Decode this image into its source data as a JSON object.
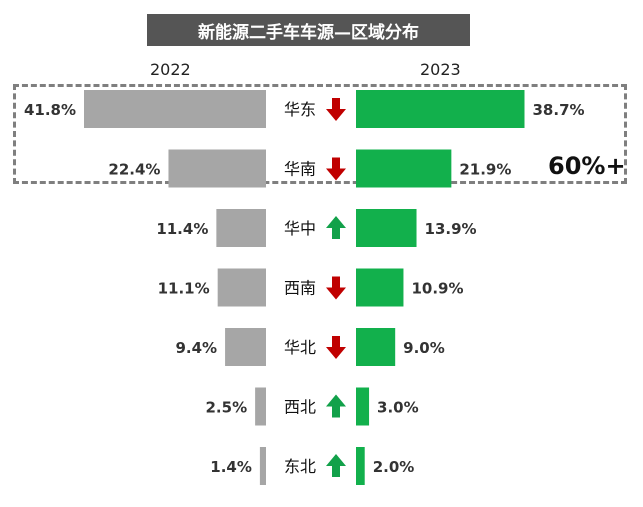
{
  "header": {
    "title": "新能源二手车车源—区域分布"
  },
  "years": {
    "left": "2022",
    "right": "2023"
  },
  "callout": "60%+",
  "colors": {
    "bar2022": "#a6a6a6",
    "bar2023": "#12b04c",
    "arrowDown": "#c00000",
    "arrowUp": "#12a14a"
  },
  "chart_data": {
    "type": "bar",
    "orientation": "horizontal-butterfly",
    "categories": [
      "华东",
      "华南",
      "华中",
      "西南",
      "华北",
      "西北",
      "东北"
    ],
    "series": [
      {
        "name": "2022",
        "values": [
          41.8,
          22.4,
          11.4,
          11.1,
          9.4,
          2.5,
          1.4
        ],
        "labels": [
          "41.8%",
          "22.4%",
          "11.4%",
          "11.1%",
          "9.4%",
          "2.5%",
          "1.4%"
        ]
      },
      {
        "name": "2023",
        "values": [
          38.7,
          21.9,
          13.9,
          10.9,
          9.0,
          3.0,
          2.0
        ],
        "labels": [
          "38.7%",
          "21.9%",
          "13.9%",
          "10.9%",
          "9.0%",
          "3.0%",
          "2.0%"
        ]
      }
    ],
    "trend": [
      "down",
      "down",
      "up",
      "down",
      "down",
      "up",
      "up"
    ],
    "title": "新能源二手车车源—区域分布"
  }
}
